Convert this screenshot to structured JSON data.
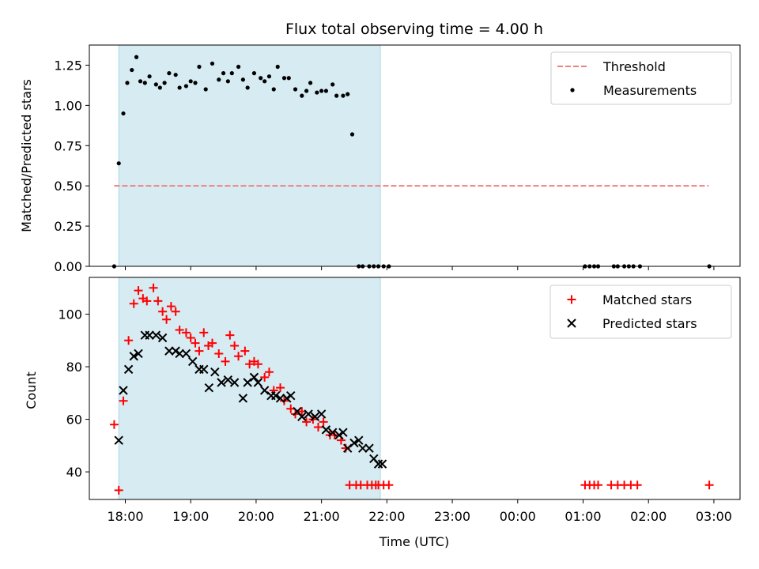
{
  "chart_data": [
    {
      "type": "scatter",
      "title": "Flux total observing time = 4.00 h",
      "xlabel": "",
      "ylabel": "Matched/Predicted stars",
      "xlim_hours": [
        17.45,
        27.4
      ],
      "ylim": [
        0,
        1.375
      ],
      "yticks": [
        "0.00",
        "0.25",
        "0.50",
        "0.75",
        "1.00",
        "1.25"
      ],
      "ytick_values": [
        0,
        0.25,
        0.5,
        0.75,
        1.0,
        1.25
      ],
      "shaded_span_hours": [
        17.9,
        21.9
      ],
      "threshold": {
        "value": 0.5,
        "x_hours": [
          17.83,
          26.92
        ],
        "color": "#f08080"
      },
      "legend": {
        "position": "top-right",
        "entries": [
          "Threshold",
          "Measurements"
        ]
      },
      "series": [
        {
          "name": "Measurements",
          "marker": "dot",
          "color": "#000000",
          "x_hours": [
            17.83,
            17.9,
            17.97,
            18.03,
            18.1,
            18.17,
            18.23,
            18.3,
            18.37,
            18.47,
            18.53,
            18.6,
            18.67,
            18.77,
            18.83,
            18.93,
            19.0,
            19.07,
            19.13,
            19.23,
            19.33,
            19.43,
            19.5,
            19.57,
            19.63,
            19.73,
            19.8,
            19.87,
            19.97,
            20.07,
            20.13,
            20.2,
            20.27,
            20.33,
            20.43,
            20.5,
            20.6,
            20.7,
            20.77,
            20.83,
            20.93,
            21.0,
            21.07,
            21.17,
            21.23,
            21.33,
            21.4,
            21.47,
            21.57,
            21.63,
            21.73,
            21.8,
            21.87,
            21.95,
            22.03,
            25.03,
            25.1,
            25.17,
            25.23,
            25.47,
            25.53,
            25.63,
            25.7,
            25.77,
            25.87,
            26.93
          ],
          "y": [
            0.0,
            0.64,
            0.95,
            1.14,
            1.22,
            1.3,
            1.15,
            1.14,
            1.18,
            1.13,
            1.11,
            1.14,
            1.2,
            1.19,
            1.11,
            1.12,
            1.15,
            1.14,
            1.24,
            1.1,
            1.26,
            1.16,
            1.2,
            1.15,
            1.2,
            1.24,
            1.16,
            1.11,
            1.2,
            1.17,
            1.15,
            1.18,
            1.1,
            1.24,
            1.17,
            1.17,
            1.1,
            1.06,
            1.09,
            1.14,
            1.08,
            1.09,
            1.09,
            1.13,
            1.06,
            1.06,
            1.07,
            0.82,
            0.0,
            0.0,
            0.0,
            0.0,
            0.0,
            0.0,
            0.0,
            0.0,
            0.0,
            0.0,
            0.0,
            0.0,
            0.0,
            0.0,
            0.0,
            0.0,
            0.0,
            0.0
          ]
        }
      ]
    },
    {
      "type": "scatter",
      "title": "",
      "xlabel": "Time (UTC)",
      "ylabel": "Count",
      "xlim_hours": [
        17.45,
        27.4
      ],
      "ylim": [
        29.5,
        114
      ],
      "yticks": [
        "40",
        "60",
        "80",
        "100"
      ],
      "ytick_values": [
        40,
        60,
        80,
        100
      ],
      "xticks": [
        "18:00",
        "19:00",
        "20:00",
        "21:00",
        "22:00",
        "23:00",
        "00:00",
        "01:00",
        "02:00",
        "03:00"
      ],
      "xtick_values": [
        18,
        19,
        20,
        21,
        22,
        23,
        24,
        25,
        26,
        27
      ],
      "shaded_span_hours": [
        17.9,
        21.9
      ],
      "legend": {
        "position": "top-right",
        "entries": [
          "Matched stars",
          "Predicted stars"
        ]
      },
      "series": [
        {
          "name": "Matched stars",
          "marker": "plus",
          "color": "#ff0000",
          "x_hours": [
            17.83,
            17.9,
            17.97,
            18.05,
            18.13,
            18.2,
            18.27,
            18.33,
            18.43,
            18.5,
            18.57,
            18.63,
            18.7,
            18.77,
            18.83,
            18.93,
            19.0,
            19.07,
            19.13,
            19.2,
            19.27,
            19.33,
            19.43,
            19.53,
            19.6,
            19.67,
            19.73,
            19.83,
            19.9,
            19.97,
            20.03,
            20.13,
            20.2,
            20.27,
            20.37,
            20.43,
            20.53,
            20.6,
            20.7,
            20.77,
            20.87,
            20.95,
            21.03,
            21.13,
            21.2,
            21.3,
            21.37,
            21.43,
            21.53,
            21.6,
            21.7,
            21.77,
            21.83,
            21.87,
            21.95,
            22.03,
            25.03,
            25.1,
            25.17,
            25.23,
            25.43,
            25.53,
            25.63,
            25.73,
            25.83,
            26.93
          ],
          "y": [
            58,
            33,
            67,
            90,
            104,
            109,
            106,
            105,
            110,
            105,
            101,
            98,
            103,
            101,
            94,
            93,
            91,
            89,
            86,
            93,
            88,
            89,
            85,
            82,
            92,
            88,
            84,
            86,
            81,
            82,
            81,
            76,
            78,
            71,
            72,
            67,
            64,
            62,
            63,
            59,
            60,
            57,
            59,
            54,
            54,
            52,
            49,
            35,
            35,
            35,
            35,
            35,
            35,
            35,
            35,
            35,
            35,
            35,
            35,
            35,
            35,
            35,
            35,
            35,
            35,
            35
          ]
        },
        {
          "name": "Predicted stars",
          "marker": "x",
          "color": "#000000",
          "x_hours": [
            17.9,
            17.97,
            18.05,
            18.13,
            18.2,
            18.3,
            18.37,
            18.47,
            18.57,
            18.67,
            18.77,
            18.83,
            18.93,
            19.03,
            19.13,
            19.2,
            19.28,
            19.37,
            19.47,
            19.57,
            19.67,
            19.8,
            19.87,
            19.97,
            20.03,
            20.13,
            20.23,
            20.3,
            20.37,
            20.47,
            20.53,
            20.63,
            20.7,
            20.8,
            20.9,
            21.0,
            21.07,
            21.17,
            21.27,
            21.33,
            21.4,
            21.5,
            21.57,
            21.63,
            21.73,
            21.8,
            21.87,
            21.93
          ],
          "y": [
            52,
            71,
            79,
            84,
            85,
            92,
            92,
            92,
            91,
            86,
            86,
            85,
            85,
            82,
            79,
            79,
            72,
            78,
            74,
            75,
            74,
            68,
            74,
            76,
            74,
            71,
            69,
            69,
            68,
            68,
            69,
            63,
            61,
            62,
            61,
            62,
            56,
            55,
            54,
            55,
            49,
            51,
            52,
            49,
            49,
            45,
            43,
            43
          ]
        }
      ]
    }
  ]
}
